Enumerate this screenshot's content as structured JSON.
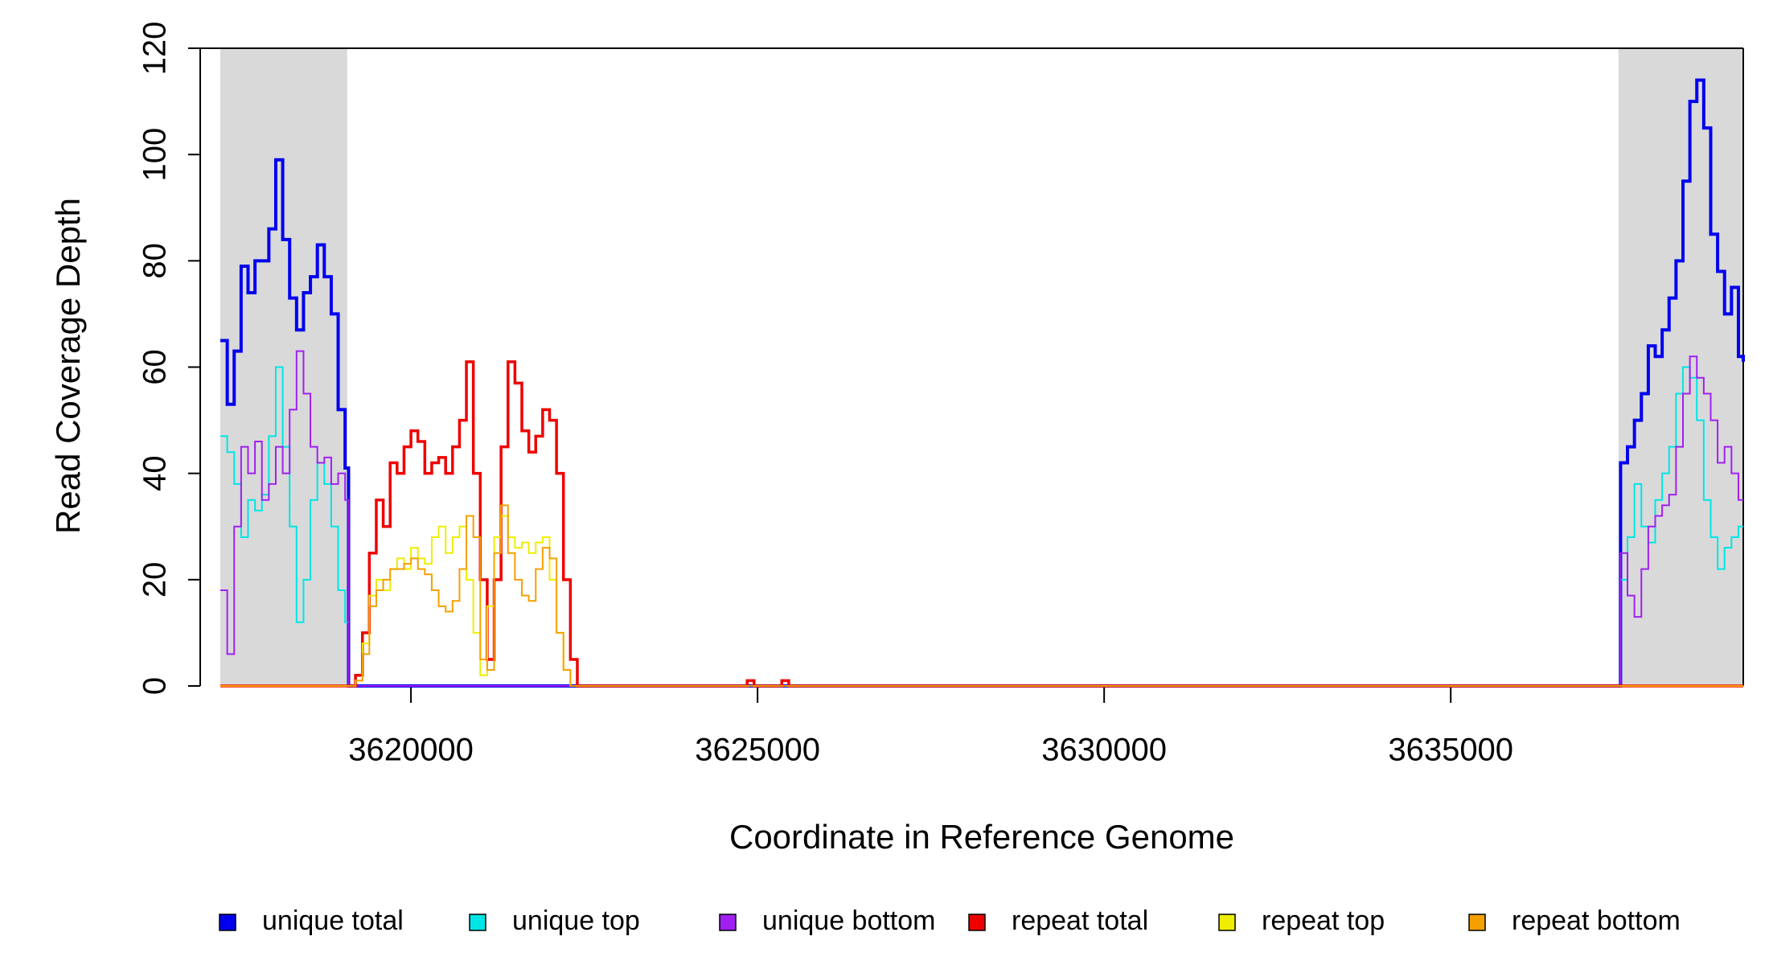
{
  "chart_data": {
    "type": "line",
    "step": "post",
    "x_label": "Coordinate in Reference Genome",
    "y_label": "Read Coverage Depth",
    "xlim": [
      3617250,
      3639220
    ],
    "ylim": [
      0,
      120
    ],
    "xticks": [
      3620000,
      3625000,
      3630000,
      3635000
    ],
    "yticks": [
      0,
      20,
      40,
      60,
      80,
      100,
      120
    ],
    "grid": false,
    "legend": "bottom",
    "shaded_regions": [
      [
        3617250,
        3619080
      ],
      [
        3637420,
        3639220
      ]
    ],
    "shade_color": "#d9d9d9",
    "x": [
      3617250,
      3617350,
      3617450,
      3617550,
      3617650,
      3617750,
      3617850,
      3617950,
      3618050,
      3618150,
      3618250,
      3618350,
      3618450,
      3618550,
      3618650,
      3618750,
      3618850,
      3618950,
      3619050,
      3619100,
      3619200,
      3619300,
      3619400,
      3619500,
      3619600,
      3619700,
      3619800,
      3619900,
      3620000,
      3620100,
      3620200,
      3620300,
      3620400,
      3620500,
      3620600,
      3620700,
      3620800,
      3620900,
      3621000,
      3621100,
      3621200,
      3621300,
      3621400,
      3621500,
      3621600,
      3621700,
      3621800,
      3621900,
      3622000,
      3622100,
      3622200,
      3622300,
      3622400,
      3624850,
      3624950,
      3625350,
      3625450,
      3637400,
      3637450,
      3637550,
      3637650,
      3637750,
      3637850,
      3637950,
      3638050,
      3638150,
      3638250,
      3638350,
      3638450,
      3638550,
      3638650,
      3638750,
      3638850,
      3638950,
      3639050,
      3639150,
      3639220
    ],
    "series": [
      {
        "name": "unique total",
        "color": "#0000ee",
        "line_width": 4,
        "values": [
          65,
          53,
          63,
          79,
          74,
          80,
          80,
          86,
          99,
          84,
          73,
          67,
          74,
          77,
          83,
          77,
          70,
          52,
          41,
          0,
          0,
          0,
          0,
          0,
          0,
          0,
          0,
          0,
          0,
          0,
          0,
          0,
          0,
          0,
          0,
          0,
          0,
          0,
          0,
          0,
          0,
          0,
          0,
          0,
          0,
          0,
          0,
          0,
          0,
          0,
          0,
          0,
          0,
          0,
          0,
          0,
          0,
          0,
          42,
          45,
          50,
          55,
          64,
          62,
          67,
          73,
          80,
          95,
          110,
          114,
          105,
          85,
          78,
          70,
          75,
          62,
          61
        ]
      },
      {
        "name": "unique top",
        "color": "#00e5e5",
        "line_width": 2,
        "values": [
          47,
          44,
          38,
          28,
          35,
          33,
          36,
          47,
          60,
          45,
          30,
          12,
          20,
          35,
          42,
          38,
          30,
          18,
          12,
          0,
          0,
          0,
          0,
          0,
          0,
          0,
          0,
          0,
          0,
          0,
          0,
          0,
          0,
          0,
          0,
          0,
          0,
          0,
          0,
          0,
          0,
          0,
          0,
          0,
          0,
          0,
          0,
          0,
          0,
          0,
          0,
          0,
          0,
          0,
          0,
          0,
          0,
          0,
          20,
          28,
          38,
          30,
          27,
          35,
          40,
          45,
          55,
          60,
          58,
          50,
          35,
          28,
          22,
          26,
          28,
          30,
          30
        ]
      },
      {
        "name": "unique bottom",
        "color": "#a020f0",
        "line_width": 2,
        "values": [
          18,
          6,
          30,
          45,
          40,
          46,
          35,
          38,
          45,
          40,
          52,
          63,
          55,
          45,
          42,
          43,
          38,
          40,
          35,
          0,
          0,
          0,
          0,
          0,
          0,
          0,
          0,
          0,
          0,
          0,
          0,
          0,
          0,
          0,
          0,
          0,
          0,
          0,
          0,
          0,
          0,
          0,
          0,
          0,
          0,
          0,
          0,
          0,
          0,
          0,
          0,
          0,
          0,
          0,
          0,
          0,
          0,
          0,
          25,
          17,
          13,
          22,
          30,
          32,
          34,
          36,
          45,
          55,
          62,
          58,
          55,
          50,
          42,
          45,
          40,
          35,
          35
        ]
      },
      {
        "name": "repeat total",
        "color": "#ee0000",
        "line_width": 3.5,
        "values": [
          0,
          0,
          0,
          0,
          0,
          0,
          0,
          0,
          0,
          0,
          0,
          0,
          0,
          0,
          0,
          0,
          0,
          0,
          0,
          0,
          2,
          10,
          25,
          35,
          30,
          42,
          40,
          45,
          48,
          46,
          40,
          42,
          43,
          40,
          45,
          50,
          61,
          40,
          20,
          5,
          20,
          45,
          61,
          57,
          48,
          44,
          47,
          52,
          50,
          40,
          20,
          5,
          0,
          1,
          0,
          1,
          0,
          0,
          0,
          0,
          0,
          0,
          0,
          0,
          0,
          0,
          0,
          0,
          0,
          0,
          0,
          0,
          0,
          0,
          0,
          0,
          0
        ]
      },
      {
        "name": "repeat top",
        "color": "#eeee00",
        "line_width": 2,
        "values": [
          0,
          0,
          0,
          0,
          0,
          0,
          0,
          0,
          0,
          0,
          0,
          0,
          0,
          0,
          0,
          0,
          0,
          0,
          0,
          0,
          1,
          8,
          17,
          20,
          18,
          22,
          24,
          22,
          26,
          24,
          23,
          28,
          30,
          25,
          28,
          30,
          20,
          10,
          2,
          15,
          28,
          32,
          28,
          26,
          27,
          25,
          27,
          28,
          20,
          10,
          3,
          0,
          0,
          0,
          0,
          0,
          0,
          0,
          0,
          0,
          0,
          0,
          0,
          0,
          0,
          0,
          0,
          0,
          0,
          0,
          0,
          0,
          0,
          0,
          0,
          0,
          0
        ]
      },
      {
        "name": "repeat bottom",
        "color": "#f5a000",
        "line_width": 2,
        "values": [
          0,
          0,
          0,
          0,
          0,
          0,
          0,
          0,
          0,
          0,
          0,
          0,
          0,
          0,
          0,
          0,
          0,
          0,
          0,
          0,
          1,
          6,
          15,
          18,
          20,
          22,
          22,
          23,
          24,
          22,
          21,
          18,
          15,
          14,
          16,
          22,
          32,
          28,
          5,
          3,
          25,
          34,
          25,
          20,
          17,
          16,
          22,
          26,
          24,
          10,
          3,
          0,
          0,
          0,
          0,
          0,
          0,
          0,
          0,
          0,
          0,
          0,
          0,
          0,
          0,
          0,
          0,
          0,
          0,
          0,
          0,
          0,
          0,
          0,
          0,
          0,
          0
        ]
      }
    ]
  }
}
